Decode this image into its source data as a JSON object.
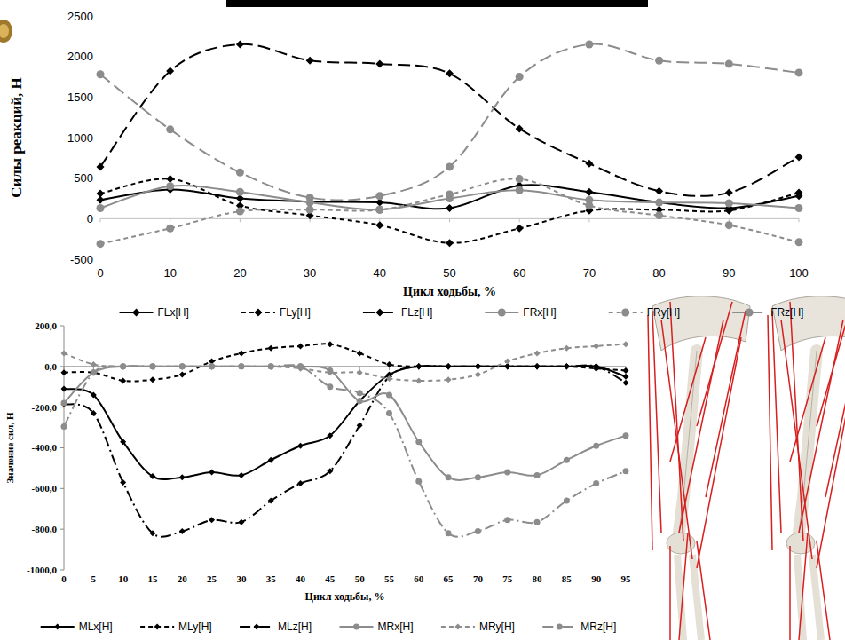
{
  "chart_data": [
    {
      "type": "line",
      "x_label": "Цикл ходьбы, %",
      "y_label": "Силы реакций, Н",
      "x": [
        0,
        10,
        20,
        30,
        40,
        50,
        60,
        70,
        80,
        90,
        100
      ],
      "xlim": [
        0,
        100
      ],
      "xticks": [
        0,
        10,
        20,
        30,
        40,
        50,
        60,
        70,
        80,
        90,
        100
      ],
      "ylim": [
        -500,
        2500
      ],
      "yticks": [
        -500,
        0,
        500,
        1000,
        1500,
        2000,
        2500
      ],
      "grid": false,
      "legend": "bottom",
      "series": [
        {
          "name": "FLx[H]",
          "color": "#000000",
          "line_style": "solid",
          "marker": "diamond",
          "values": [
            230,
            360,
            250,
            210,
            200,
            130,
            410,
            330,
            200,
            130,
            280
          ]
        },
        {
          "name": "FLy[H]",
          "color": "#000000",
          "line_style": "dashed",
          "marker": "diamond",
          "values": [
            310,
            490,
            160,
            40,
            -80,
            -300,
            -120,
            100,
            110,
            100,
            320
          ]
        },
        {
          "name": "FLz[H]",
          "color": "#000000",
          "line_style": "longdash",
          "marker": "diamond",
          "values": [
            640,
            1820,
            2150,
            1950,
            1910,
            1790,
            1110,
            680,
            340,
            320,
            760
          ]
        },
        {
          "name": "FRx[H]",
          "color": "#8c8c8c",
          "line_style": "solid",
          "marker": "circle",
          "values": [
            130,
            400,
            330,
            200,
            110,
            250,
            350,
            230,
            200,
            190,
            130
          ]
        },
        {
          "name": "FRy[H]",
          "color": "#8c8c8c",
          "line_style": "dashed",
          "marker": "circle",
          "values": [
            -310,
            -120,
            90,
            110,
            110,
            300,
            490,
            160,
            40,
            -80,
            -290
          ]
        },
        {
          "name": "FRz[H]",
          "color": "#8c8c8c",
          "line_style": "longdash",
          "marker": "circle",
          "values": [
            1780,
            1100,
            570,
            260,
            280,
            640,
            1750,
            2150,
            1950,
            1910,
            1800
          ]
        }
      ]
    },
    {
      "type": "line",
      "x_label": "Цикл ходьбы, %",
      "y_label": "Значение сил, Н",
      "x": [
        0,
        5,
        10,
        15,
        20,
        25,
        30,
        35,
        40,
        45,
        50,
        55,
        60,
        65,
        70,
        75,
        80,
        85,
        90,
        95
      ],
      "xlim": [
        0,
        95
      ],
      "xticks": [
        0,
        5,
        10,
        15,
        20,
        25,
        30,
        35,
        40,
        45,
        50,
        55,
        60,
        65,
        70,
        75,
        80,
        85,
        90,
        95
      ],
      "ylim": [
        -1000,
        200
      ],
      "yticks": [
        {
          "value": -1000,
          "label": "-1000,0"
        },
        {
          "value": -800,
          "label": "-800,0"
        },
        {
          "value": -600,
          "label": "-600,0"
        },
        {
          "value": -400,
          "label": "-400,0"
        },
        {
          "value": -200,
          "label": "-200,0"
        },
        {
          "value": 0,
          "label": "0,0"
        },
        {
          "value": 200,
          "label": "200,0"
        }
      ],
      "grid": false,
      "legend": "bottom",
      "series": [
        {
          "name": "MLx[H]",
          "color": "#000000",
          "line_style": "solid",
          "marker": "diamond",
          "values": [
            -110,
            -140,
            -370,
            -540,
            -545,
            -520,
            -535,
            -460,
            -390,
            -340,
            -170,
            -40,
            0,
            0,
            0,
            0,
            0,
            0,
            0,
            -50
          ]
        },
        {
          "name": "MLy[H]",
          "color": "#000000",
          "line_style": "dashed",
          "marker": "diamond",
          "values": [
            -30,
            -30,
            -70,
            -65,
            -40,
            25,
            65,
            90,
            100,
            110,
            65,
            10,
            0,
            0,
            0,
            0,
            0,
            0,
            -10,
            -20
          ]
        },
        {
          "name": "MLz[H]",
          "color": "#000000",
          "line_style": "dashdot",
          "marker": "diamond",
          "values": [
            -185,
            -230,
            -570,
            -820,
            -810,
            -755,
            -765,
            -660,
            -575,
            -515,
            -290,
            -50,
            0,
            0,
            0,
            0,
            0,
            0,
            0,
            -80
          ]
        },
        {
          "name": "MRx[H]",
          "color": "#8c8c8c",
          "line_style": "solid",
          "marker": "circle",
          "values": [
            -180,
            -30,
            0,
            0,
            0,
            0,
            0,
            0,
            0,
            -20,
            -170,
            -140,
            -370,
            -545,
            -545,
            -520,
            -535,
            -460,
            -390,
            -340
          ]
        },
        {
          "name": "MRy[H]",
          "color": "#8c8c8c",
          "line_style": "dashed",
          "marker": "diamond",
          "values": [
            65,
            10,
            0,
            0,
            0,
            0,
            0,
            0,
            -10,
            -30,
            -30,
            -60,
            -70,
            -65,
            -40,
            25,
            65,
            90,
            100,
            110
          ]
        },
        {
          "name": "MRz[H]",
          "color": "#8c8c8c",
          "line_style": "dashdot",
          "marker": "circle",
          "values": [
            -295,
            -30,
            0,
            0,
            0,
            0,
            0,
            0,
            0,
            -100,
            -130,
            -230,
            -565,
            -820,
            -810,
            -755,
            -765,
            -660,
            -575,
            -515
          ]
        }
      ]
    }
  ]
}
